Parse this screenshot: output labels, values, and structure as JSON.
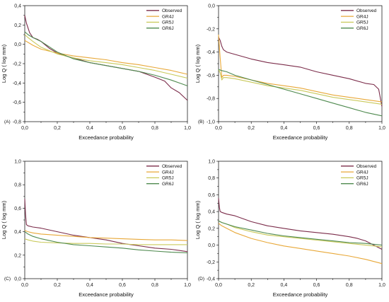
{
  "colors": {
    "Observed": "#7b2c4a",
    "GR4J": "#e8a838",
    "GR5J": "#c9c95a",
    "GR6J": "#4f8a4f"
  },
  "chart_data": [
    {
      "panel": "(A)",
      "type": "line",
      "xlabel": "Exceedance probability",
      "ylabel": "Log Q ( log mm)",
      "xlim": [
        0,
        1
      ],
      "ylim": [
        -0.8,
        0.4
      ],
      "xticks": [
        "0,0",
        "0,2",
        "0,4",
        "0,6",
        "0,8",
        "1,0"
      ],
      "yticks": [
        "-0,8",
        "-0,6",
        "-0,4",
        "-0,2",
        "0,0",
        "0,2",
        "0,4"
      ],
      "legend": "top-right",
      "series": [
        {
          "name": "Observed",
          "x": [
            0,
            0.01,
            0.03,
            0.05,
            0.08,
            0.1,
            0.15,
            0.2,
            0.25,
            0.3,
            0.4,
            0.5,
            0.6,
            0.7,
            0.8,
            0.83,
            0.86,
            0.9,
            0.95,
            1.0
          ],
          "y": [
            0.3,
            0.22,
            0.12,
            0.07,
            0.05,
            0.03,
            -0.04,
            -0.09,
            -0.12,
            -0.14,
            -0.19,
            -0.22,
            -0.25,
            -0.28,
            -0.34,
            -0.36,
            -0.38,
            -0.45,
            -0.5,
            -0.58
          ]
        },
        {
          "name": "GR4J",
          "x": [
            0,
            0.02,
            0.05,
            0.1,
            0.2,
            0.3,
            0.4,
            0.5,
            0.6,
            0.7,
            0.8,
            0.9,
            1.0
          ],
          "y": [
            0.04,
            0.02,
            -0.01,
            -0.05,
            -0.09,
            -0.12,
            -0.14,
            -0.16,
            -0.19,
            -0.21,
            -0.24,
            -0.27,
            -0.31
          ]
        },
        {
          "name": "GR5J",
          "x": [
            0,
            0.02,
            0.05,
            0.1,
            0.2,
            0.3,
            0.4,
            0.5,
            0.6,
            0.7,
            0.8,
            0.9,
            1.0
          ],
          "y": [
            0.1,
            0.07,
            0.03,
            -0.03,
            -0.1,
            -0.14,
            -0.17,
            -0.19,
            -0.21,
            -0.24,
            -0.27,
            -0.31,
            -0.35
          ]
        },
        {
          "name": "GR6J",
          "x": [
            0,
            0.02,
            0.05,
            0.1,
            0.2,
            0.3,
            0.4,
            0.5,
            0.6,
            0.7,
            0.8,
            0.9,
            1.0
          ],
          "y": [
            0.13,
            0.1,
            0.07,
            0.03,
            -0.08,
            -0.15,
            -0.19,
            -0.22,
            -0.25,
            -0.28,
            -0.32,
            -0.37,
            -0.43
          ]
        }
      ]
    },
    {
      "panel": "(B)",
      "type": "line",
      "xlabel": "Exceedance probability",
      "ylabel": "Log Q ( log mm)",
      "xlim": [
        0,
        1
      ],
      "ylim": [
        -1.0,
        0.0
      ],
      "xticks": [
        "0,0",
        "0,2",
        "0,4",
        "0,6",
        "0,8",
        "1,0"
      ],
      "yticks": [
        "-1,0",
        "-0,8",
        "-0,6",
        "-0,4",
        "-0,2",
        "0,0"
      ],
      "legend": "top-right",
      "series": [
        {
          "name": "Observed",
          "x": [
            0,
            0.01,
            0.02,
            0.03,
            0.05,
            0.1,
            0.2,
            0.3,
            0.4,
            0.5,
            0.6,
            0.7,
            0.8,
            0.9,
            0.95,
            0.98,
            1.0
          ],
          "y": [
            -0.27,
            -0.3,
            -0.35,
            -0.38,
            -0.4,
            -0.42,
            -0.46,
            -0.49,
            -0.51,
            -0.53,
            -0.57,
            -0.6,
            -0.63,
            -0.67,
            -0.68,
            -0.72,
            -0.87
          ]
        },
        {
          "name": "GR4J",
          "x": [
            0,
            0.01,
            0.02,
            0.03,
            0.05,
            0.1,
            0.2,
            0.3,
            0.4,
            0.5,
            0.6,
            0.7,
            0.8,
            0.9,
            1.0
          ],
          "y": [
            -0.25,
            -0.45,
            -0.62,
            -0.6,
            -0.6,
            -0.61,
            -0.64,
            -0.67,
            -0.69,
            -0.71,
            -0.74,
            -0.77,
            -0.79,
            -0.81,
            -0.83
          ]
        },
        {
          "name": "GR5J",
          "x": [
            0,
            0.01,
            0.02,
            0.03,
            0.05,
            0.1,
            0.2,
            0.3,
            0.4,
            0.5,
            0.6,
            0.7,
            0.8,
            0.9,
            1.0
          ],
          "y": [
            -0.55,
            -0.58,
            -0.64,
            -0.62,
            -0.62,
            -0.63,
            -0.66,
            -0.69,
            -0.71,
            -0.73,
            -0.76,
            -0.79,
            -0.81,
            -0.83,
            -0.85
          ]
        },
        {
          "name": "GR6J",
          "x": [
            0,
            0.02,
            0.05,
            0.1,
            0.2,
            0.3,
            0.4,
            0.5,
            0.6,
            0.7,
            0.8,
            0.9,
            1.0
          ],
          "y": [
            -0.55,
            -0.56,
            -0.57,
            -0.6,
            -0.64,
            -0.68,
            -0.72,
            -0.76,
            -0.8,
            -0.84,
            -0.88,
            -0.92,
            -0.95
          ]
        }
      ]
    },
    {
      "panel": "(C)",
      "type": "line",
      "xlabel": "Exceedance probability",
      "ylabel": "Log Q ( log mm)",
      "xlim": [
        0,
        1
      ],
      "ylim": [
        0.0,
        1.0
      ],
      "xticks": [
        "0,0",
        "0,2",
        "0,4",
        "0,6",
        "0,8",
        "1,0"
      ],
      "yticks": [
        "0,0",
        "0,2",
        "0,4",
        "0,6",
        "0,8",
        "1,0"
      ],
      "legend": "top-right",
      "series": [
        {
          "name": "Observed",
          "x": [
            0,
            0.005,
            0.01,
            0.02,
            0.05,
            0.1,
            0.2,
            0.3,
            0.4,
            0.5,
            0.6,
            0.7,
            0.8,
            0.9,
            1.0
          ],
          "y": [
            0.68,
            0.55,
            0.46,
            0.45,
            0.44,
            0.43,
            0.4,
            0.37,
            0.35,
            0.33,
            0.3,
            0.28,
            0.26,
            0.25,
            0.23
          ]
        },
        {
          "name": "GR4J",
          "x": [
            0,
            0.02,
            0.05,
            0.1,
            0.2,
            0.3,
            0.4,
            0.5,
            0.6,
            0.7,
            0.8,
            0.9,
            1.0
          ],
          "y": [
            0.41,
            0.4,
            0.39,
            0.38,
            0.37,
            0.36,
            0.35,
            0.345,
            0.34,
            0.335,
            0.33,
            0.33,
            0.325
          ]
        },
        {
          "name": "GR5J",
          "x": [
            0,
            0.02,
            0.05,
            0.1,
            0.2,
            0.3,
            0.4,
            0.5,
            0.6,
            0.7,
            0.8,
            0.9,
            1.0
          ],
          "y": [
            0.34,
            0.33,
            0.32,
            0.31,
            0.305,
            0.3,
            0.3,
            0.295,
            0.295,
            0.29,
            0.29,
            0.29,
            0.29
          ]
        },
        {
          "name": "GR6J",
          "x": [
            0,
            0.02,
            0.05,
            0.1,
            0.2,
            0.3,
            0.4,
            0.5,
            0.6,
            0.7,
            0.8,
            0.9,
            1.0
          ],
          "y": [
            0.4,
            0.38,
            0.36,
            0.34,
            0.31,
            0.29,
            0.28,
            0.27,
            0.26,
            0.245,
            0.235,
            0.225,
            0.22
          ]
        }
      ]
    },
    {
      "panel": "(D)",
      "type": "line",
      "xlabel": "Exceedance probability",
      "ylabel": "Log Q ( log mm)",
      "xlim": [
        0,
        1
      ],
      "ylim": [
        -0.4,
        1.0
      ],
      "xticks": [
        "0,0",
        "0,2",
        "0,4",
        "0,6",
        "0,8",
        "1,0"
      ],
      "yticks": [
        "-0,4",
        "-0,2",
        "0,0",
        "0,2",
        "0,4",
        "0,6",
        "0,8",
        "1,0"
      ],
      "legend": "top-right",
      "series": [
        {
          "name": "Observed",
          "x": [
            0,
            0.005,
            0.01,
            0.02,
            0.05,
            0.1,
            0.2,
            0.3,
            0.4,
            0.5,
            0.6,
            0.7,
            0.8,
            0.85,
            0.9,
            0.95,
            1.0
          ],
          "y": [
            0.56,
            0.45,
            0.4,
            0.39,
            0.37,
            0.35,
            0.28,
            0.23,
            0.2,
            0.17,
            0.15,
            0.13,
            0.1,
            0.08,
            0.05,
            0.0,
            -0.05
          ]
        },
        {
          "name": "GR4J",
          "x": [
            0,
            0.02,
            0.05,
            0.1,
            0.2,
            0.3,
            0.4,
            0.5,
            0.6,
            0.7,
            0.8,
            0.9,
            1.0
          ],
          "y": [
            0.26,
            0.23,
            0.2,
            0.15,
            0.08,
            0.03,
            -0.01,
            -0.04,
            -0.07,
            -0.1,
            -0.13,
            -0.17,
            -0.22
          ]
        },
        {
          "name": "GR5J",
          "x": [
            0,
            0.02,
            0.05,
            0.1,
            0.2,
            0.3,
            0.4,
            0.5,
            0.6,
            0.7,
            0.8,
            0.9,
            1.0
          ],
          "y": [
            0.29,
            0.27,
            0.25,
            0.21,
            0.16,
            0.12,
            0.1,
            0.08,
            0.06,
            0.04,
            0.02,
            0.0,
            -0.02
          ]
        },
        {
          "name": "GR6J",
          "x": [
            0,
            0.02,
            0.05,
            0.1,
            0.2,
            0.3,
            0.4,
            0.5,
            0.6,
            0.7,
            0.8,
            0.9,
            1.0
          ],
          "y": [
            0.29,
            0.27,
            0.25,
            0.22,
            0.18,
            0.14,
            0.11,
            0.09,
            0.07,
            0.05,
            0.03,
            0.02,
            0.0
          ]
        }
      ]
    }
  ]
}
